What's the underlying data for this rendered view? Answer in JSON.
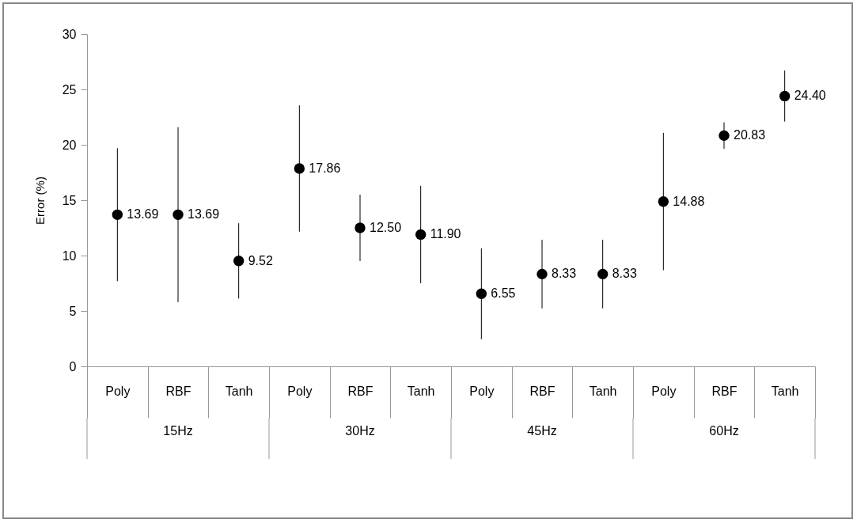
{
  "chart_data": {
    "type": "scatter",
    "ylabel": "Error (%)",
    "categories": [
      "Poly",
      "RBF",
      "Tanh",
      "Poly",
      "RBF",
      "Tanh",
      "Poly",
      "RBF",
      "Tanh",
      "Poly",
      "RBF",
      "Tanh"
    ],
    "values": [
      13.69,
      13.69,
      9.52,
      17.86,
      12.5,
      11.9,
      6.55,
      8.33,
      8.33,
      14.88,
      20.83,
      24.4
    ],
    "value_labels": [
      "13.69",
      "13.69",
      "9.52",
      "17.86",
      "12.50",
      "11.90",
      "6.55",
      "8.33",
      "8.33",
      "14.88",
      "20.83",
      "24.40"
    ],
    "errors": [
      6.0,
      7.9,
      3.4,
      5.7,
      3.0,
      4.4,
      4.1,
      3.1,
      3.1,
      6.2,
      1.2,
      2.3
    ],
    "color": "#000000",
    "marker": "circle",
    "ylim": [
      0,
      30
    ],
    "yticks": [
      0,
      5,
      10,
      15,
      20,
      25,
      30
    ],
    "grid": false,
    "legend": false,
    "annotations": [
      "15Hz",
      "30Hz",
      "45Hz",
      "60Hz"
    ]
  }
}
